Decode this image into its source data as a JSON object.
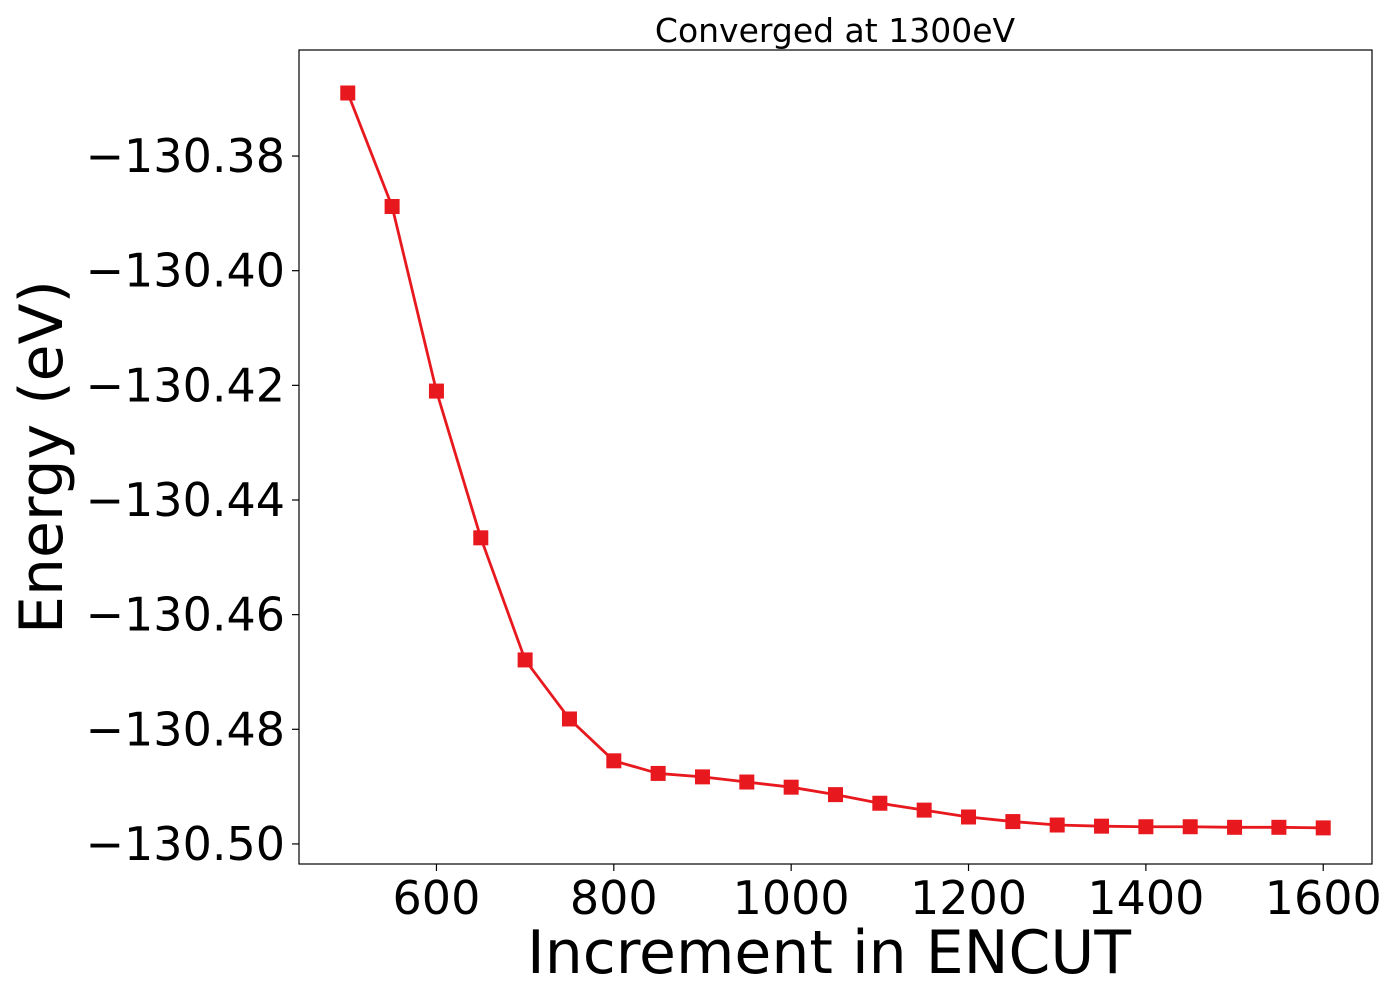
{
  "chart_data": {
    "type": "line",
    "title": "Converged at 1300eV",
    "xlabel": "Increment in ENCUT",
    "ylabel": "Energy (eV)",
    "xlim": [
      445,
      1655
    ],
    "ylim": [
      -130.5035,
      -130.3615
    ],
    "xticks": [
      600,
      800,
      1000,
      1200,
      1400,
      1600
    ],
    "xtick_labels": [
      "600",
      "800",
      "1000",
      "1200",
      "1400",
      "1600"
    ],
    "yticks": [
      -130.38,
      -130.4,
      -130.42,
      -130.44,
      -130.46,
      -130.48,
      -130.5
    ],
    "ytick_labels": [
      "−130.38",
      "−130.40",
      "−130.42",
      "−130.44",
      "−130.46",
      "−130.48",
      "−130.50"
    ],
    "grid": false,
    "series": [
      {
        "color": "#e8191e",
        "marker": "square",
        "x": [
          500,
          550,
          600,
          650,
          700,
          750,
          800,
          850,
          900,
          950,
          1000,
          1050,
          1100,
          1150,
          1200,
          1250,
          1300,
          1350,
          1400,
          1450,
          1500,
          1550,
          1600
        ],
        "y": [
          -130.369,
          -130.3888,
          -130.421,
          -130.4466,
          -130.4679,
          -130.4782,
          -130.4855,
          -130.4877,
          -130.4883,
          -130.4892,
          -130.4901,
          -130.4914,
          -130.4929,
          -130.4941,
          -130.4953,
          -130.4961,
          -130.4967,
          -130.4969,
          -130.497,
          -130.497,
          -130.4971,
          -130.4971,
          -130.4972
        ]
      }
    ]
  }
}
